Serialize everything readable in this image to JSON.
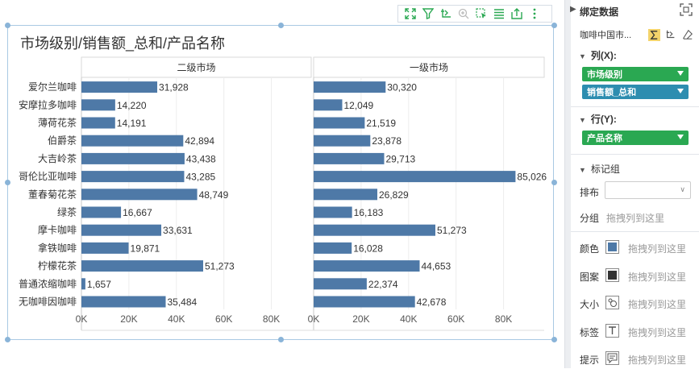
{
  "chart_title": "市场级别/销售额_总和/产品名称",
  "toolbar": {
    "icons": [
      "fullscreen-icon",
      "filter-icon",
      "linked-filter-icon",
      "zoom-icon",
      "select-icon",
      "list-icon",
      "export-icon",
      "more-icon"
    ]
  },
  "chart_data": {
    "type": "bar",
    "orientation": "horizontal",
    "panels": [
      "二级市场",
      "一级市场"
    ],
    "categories": [
      "爱尔兰咖啡",
      "安摩拉多咖啡",
      "薄荷花茶",
      "伯爵茶",
      "大吉岭茶",
      "哥伦比亚咖啡",
      "董春菊花茶",
      "绿茶",
      "摩卡咖啡",
      "拿铁咖啡",
      "柠檬花茶",
      "普通浓缩咖啡",
      "无咖啡因咖啡"
    ],
    "series": [
      {
        "panel": "二级市场",
        "values": [
          31928,
          14220,
          14191,
          42894,
          43438,
          43285,
          48749,
          16667,
          33631,
          19871,
          51273,
          1657,
          35484
        ],
        "labels": [
          "31,928",
          "14,220",
          "14,191",
          "42,894",
          "43,438",
          "43,285",
          "48,749",
          "16,667",
          "33,631",
          "19,871",
          "51,273",
          "1,657",
          "35,484"
        ]
      },
      {
        "panel": "一级市场",
        "values": [
          30320,
          12049,
          21519,
          23878,
          29713,
          85026,
          26829,
          16183,
          51273,
          16028,
          44653,
          22374,
          42678
        ],
        "labels": [
          "30,320",
          "12,049",
          "21,519",
          "23,878",
          "29,713",
          "85,026",
          "26,829",
          "16,183",
          "51,273",
          "16,028",
          "44,653",
          "22,374",
          "42,678"
        ]
      }
    ],
    "xticks": [
      "0K",
      "20K",
      "40K",
      "60K",
      "80K"
    ],
    "xlim": [
      0,
      100000
    ],
    "bar_color": "#4e79a7",
    "grid": true
  },
  "panel": {
    "title": "绑定数据",
    "datasource": "咖啡中国市...",
    "columns_label": "列(X):",
    "columns": [
      {
        "label": "市场级别",
        "color": "#2aa852"
      },
      {
        "label": "销售额_总和",
        "color": "#2d8db0"
      }
    ],
    "rows_label": "行(Y):",
    "rows": [
      {
        "label": "产品名称",
        "color": "#2aa852"
      }
    ],
    "marks_label": "标记组",
    "layout_label": "排布",
    "group_label": "分组",
    "group_drop": "拖拽列到这里",
    "props": [
      {
        "label": "颜色",
        "drop": "拖拽列到这里",
        "icon": "color-icon"
      },
      {
        "label": "图案",
        "drop": "拖拽列到这里",
        "icon": "pattern-icon"
      },
      {
        "label": "大小",
        "drop": "拖拽列到这里",
        "icon": "size-icon"
      },
      {
        "label": "标签",
        "drop": "拖拽列到这里",
        "icon": "label-icon"
      },
      {
        "label": "提示",
        "drop": "拖拽列到这里",
        "icon": "tooltip-icon"
      }
    ]
  }
}
